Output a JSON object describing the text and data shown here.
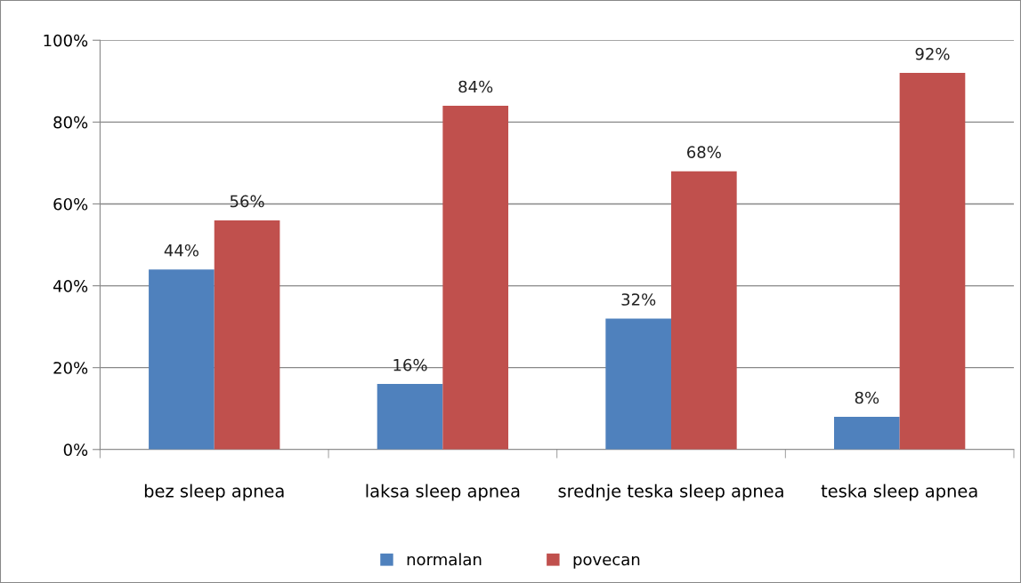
{
  "chart_data": {
    "type": "bar",
    "categories": [
      "bez sleep apnea",
      "laksa sleep apnea",
      "srednje teska sleep apnea",
      "teska sleep apnea"
    ],
    "series": [
      {
        "name": "normalan",
        "color": "#4f81bd",
        "values": [
          44,
          16,
          32,
          8
        ],
        "value_labels": [
          "44%",
          "16%",
          "32%",
          "8%"
        ]
      },
      {
        "name": "povecan",
        "color": "#c0504d",
        "values": [
          56,
          84,
          68,
          92
        ],
        "value_labels": [
          "56%",
          "84%",
          "68%",
          "92%"
        ]
      }
    ],
    "ylim": [
      0,
      100
    ],
    "yticks": [
      {
        "value": 0,
        "label": "0%"
      },
      {
        "value": 20,
        "label": "20%"
      },
      {
        "value": 40,
        "label": "40%"
      },
      {
        "value": 60,
        "label": "60%"
      },
      {
        "value": 80,
        "label": "80%"
      },
      {
        "value": 100,
        "label": "100%"
      }
    ],
    "grid": "y",
    "legend": "bottom"
  }
}
